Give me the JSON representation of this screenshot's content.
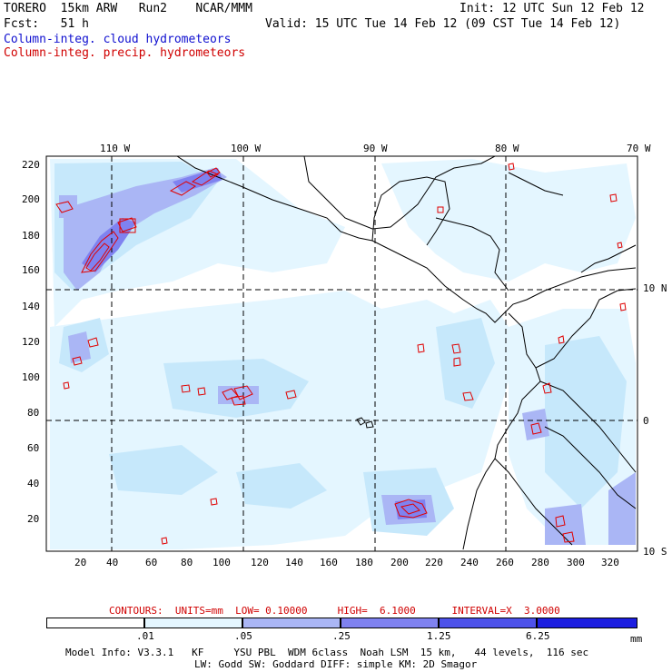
{
  "header": {
    "model": "TORERO  15km ARW   Run2    NCAR/MMM",
    "init": "Init: 12 UTC Sun 12 Feb 12",
    "fcst": "Fcst:   51 h",
    "valid": "Valid: 15 UTC Tue 14 Feb 12 (09 CST Tue 14 Feb 12)",
    "field1": "Column-integ. cloud hydrometeors",
    "field2": "Column-integ. precip. hydrometeors"
  },
  "axes": {
    "lon_labels": [
      "110 W",
      "100 W",
      "90 W",
      "80 W",
      "70 W"
    ],
    "lat_labels": [
      "10 N",
      "0",
      "10 S"
    ],
    "y_ticks": [
      "220",
      "200",
      "180",
      "160",
      "140",
      "120",
      "100",
      "80",
      "60",
      "40",
      "20"
    ],
    "x_ticks": [
      "20",
      "40",
      "60",
      "80",
      "100",
      "120",
      "140",
      "160",
      "180",
      "200",
      "220",
      "240",
      "260",
      "280",
      "300",
      "320"
    ]
  },
  "contours_line": {
    "label": "CONTOURS:  UNITS=mm  LOW= 0.10000     HIGH=  6.1000      INTERVAL=X  3.0000"
  },
  "legend": {
    "thresholds": [
      ".01",
      ".05",
      ".25",
      "1.25",
      "6.25"
    ],
    "unit": "mm",
    "colors": [
      "#ffffff",
      "#e4f6ff",
      "#c6e8fb",
      "#aab6f5",
      "#7f82f0",
      "#4d52ea",
      "#1c1ee0"
    ]
  },
  "footer": {
    "line1": "Model Info: V3.3.1   KF     YSU PBL  WDM 6class  Noah LSM  15 km,   44 levels,  116 sec",
    "line2": "LW: Godd SW: Goddard DIFF: simple KM: 2D Smagor"
  }
}
